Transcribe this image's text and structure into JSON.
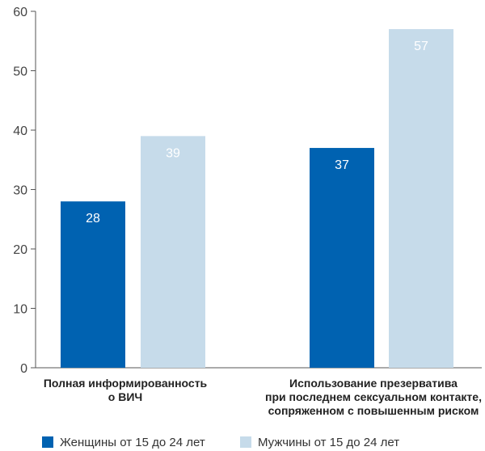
{
  "chart_data": {
    "type": "bar",
    "categories": [
      [
        "Полная информированность",
        "о ВИЧ"
      ],
      [
        "Использование презерватива",
        "при последнем сексуальном контакте,",
        "сопряженном с повышенным риском"
      ]
    ],
    "series": [
      {
        "name": "Женщины от 15 до 24 лет",
        "values": [
          28,
          37
        ],
        "color": "#0062b1"
      },
      {
        "name": "Мужчины от 15 до 24 лет",
        "values": [
          39,
          57
        ],
        "color": "#c6dbea"
      }
    ],
    "yticks": [
      "0",
      "10",
      "20",
      "30",
      "40",
      "50",
      "60"
    ],
    "ylim": [
      0,
      60
    ],
    "grid": false,
    "legend_position": "bottom-left",
    "axis_color": "#555555"
  }
}
